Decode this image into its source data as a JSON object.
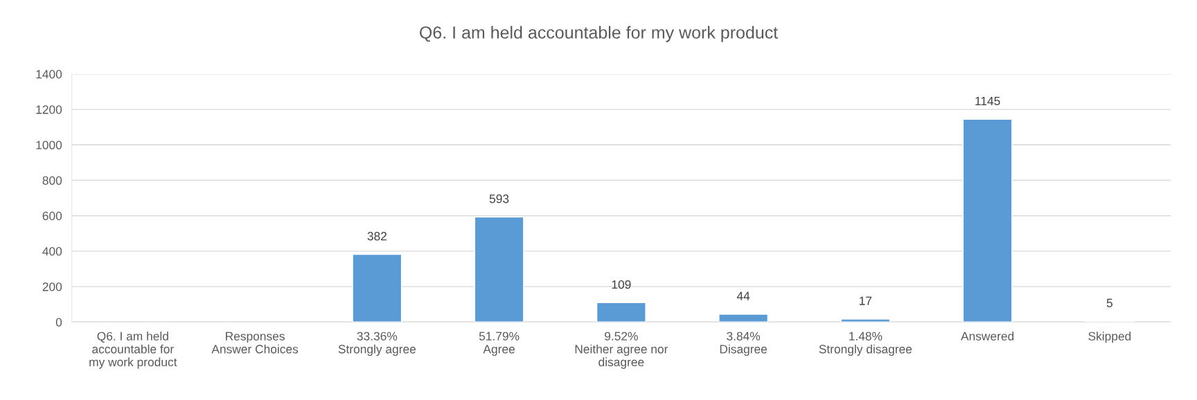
{
  "chart_data": {
    "type": "bar",
    "title": "Q6. I am held accountable for my work product",
    "categories": [
      "Q6. I am held\naccountable for\nmy work product",
      "Responses\nAnswer Choices",
      "33.36%\nStrongly agree",
      "51.79%\nAgree",
      "9.52%\nNeither agree nor\ndisagree",
      "3.84%\nDisagree",
      "1.48%\nStrongly disagree",
      "Answered",
      "Skipped"
    ],
    "values": [
      null,
      null,
      382,
      593,
      109,
      44,
      17,
      1145,
      5
    ],
    "color": "#5b9bd5",
    "ylim": [
      0,
      1400
    ],
    "yticks": [
      0,
      200,
      400,
      600,
      800,
      1000,
      1200,
      1400
    ],
    "grid": "y",
    "data_labels": true
  }
}
